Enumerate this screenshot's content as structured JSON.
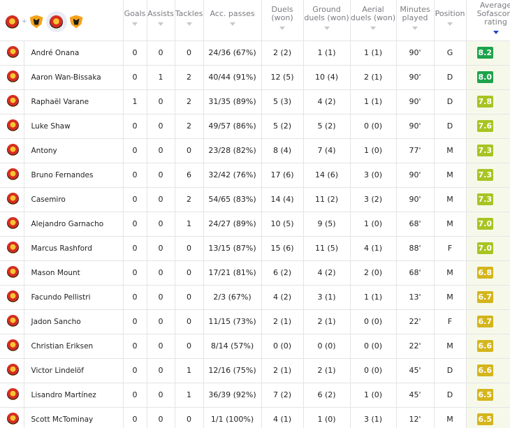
{
  "header": {
    "team_selector": {
      "left_team_icon": "man-utd-crest",
      "separator": "+",
      "right_team_icon": "wolves-crest"
    },
    "columns": [
      {
        "key": "goals",
        "label": "Goals"
      },
      {
        "key": "assists",
        "label": "Assists"
      },
      {
        "key": "tackles",
        "label": "Tackles"
      },
      {
        "key": "acc_passes",
        "label": "Acc. passes"
      },
      {
        "key": "duels",
        "label": "Duels\n(won)"
      },
      {
        "key": "ground_duels",
        "label": "Ground\nduels (won)"
      },
      {
        "key": "aerial_duels",
        "label": "Aerial\nduels (won)"
      },
      {
        "key": "minutes",
        "label": "Minutes\nplayed"
      },
      {
        "key": "position",
        "label": "Position"
      },
      {
        "key": "rating",
        "label": "Average\nSofascore\nrating"
      }
    ],
    "sorted_column": "rating"
  },
  "rating_colors": {
    "green": "#1ea34b",
    "lime": "#a8c422",
    "yellow": "#d4b51c"
  },
  "players": [
    {
      "team_icon": "man-utd-crest",
      "name": "André Onana",
      "goals": "0",
      "assists": "0",
      "tackles": "0",
      "acc_passes": "24/36 (67%)",
      "duels": "2 (2)",
      "ground_duels": "1 (1)",
      "aerial_duels": "1 (1)",
      "minutes": "90'",
      "position": "G",
      "rating": "8.2",
      "rating_color": "green"
    },
    {
      "team_icon": "man-utd-crest",
      "name": "Aaron Wan-Bissaka",
      "goals": "0",
      "assists": "1",
      "tackles": "2",
      "acc_passes": "40/44 (91%)",
      "duels": "12 (5)",
      "ground_duels": "10 (4)",
      "aerial_duels": "2 (1)",
      "minutes": "90'",
      "position": "D",
      "rating": "8.0",
      "rating_color": "green"
    },
    {
      "team_icon": "man-utd-crest",
      "name": "Raphaël Varane",
      "goals": "1",
      "assists": "0",
      "tackles": "2",
      "acc_passes": "31/35 (89%)",
      "duels": "5 (3)",
      "ground_duels": "4 (2)",
      "aerial_duels": "1 (1)",
      "minutes": "90'",
      "position": "D",
      "rating": "7.8",
      "rating_color": "lime"
    },
    {
      "team_icon": "man-utd-crest",
      "name": "Luke Shaw",
      "goals": "0",
      "assists": "0",
      "tackles": "2",
      "acc_passes": "49/57 (86%)",
      "duels": "5 (2)",
      "ground_duels": "5 (2)",
      "aerial_duels": "0 (0)",
      "minutes": "90'",
      "position": "D",
      "rating": "7.6",
      "rating_color": "lime"
    },
    {
      "team_icon": "man-utd-crest",
      "name": "Antony",
      "goals": "0",
      "assists": "0",
      "tackles": "0",
      "acc_passes": "23/28 (82%)",
      "duels": "8 (4)",
      "ground_duels": "7 (4)",
      "aerial_duels": "1 (0)",
      "minutes": "77'",
      "position": "M",
      "rating": "7.3",
      "rating_color": "lime"
    },
    {
      "team_icon": "man-utd-crest",
      "name": "Bruno Fernandes",
      "goals": "0",
      "assists": "0",
      "tackles": "6",
      "acc_passes": "32/42 (76%)",
      "duels": "17 (6)",
      "ground_duels": "14 (6)",
      "aerial_duels": "3 (0)",
      "minutes": "90'",
      "position": "M",
      "rating": "7.3",
      "rating_color": "lime"
    },
    {
      "team_icon": "man-utd-crest",
      "name": "Casemiro",
      "goals": "0",
      "assists": "0",
      "tackles": "2",
      "acc_passes": "54/65 (83%)",
      "duels": "14 (4)",
      "ground_duels": "11 (2)",
      "aerial_duels": "3 (2)",
      "minutes": "90'",
      "position": "M",
      "rating": "7.3",
      "rating_color": "lime"
    },
    {
      "team_icon": "man-utd-crest",
      "name": "Alejandro Garnacho",
      "goals": "0",
      "assists": "0",
      "tackles": "1",
      "acc_passes": "24/27 (89%)",
      "duels": "10 (5)",
      "ground_duels": "9 (5)",
      "aerial_duels": "1 (0)",
      "minutes": "68'",
      "position": "M",
      "rating": "7.0",
      "rating_color": "lime"
    },
    {
      "team_icon": "man-utd-crest",
      "name": "Marcus Rashford",
      "goals": "0",
      "assists": "0",
      "tackles": "0",
      "acc_passes": "13/15 (87%)",
      "duels": "15 (6)",
      "ground_duels": "11 (5)",
      "aerial_duels": "4 (1)",
      "minutes": "88'",
      "position": "F",
      "rating": "7.0",
      "rating_color": "lime"
    },
    {
      "team_icon": "man-utd-crest",
      "name": "Mason Mount",
      "goals": "0",
      "assists": "0",
      "tackles": "0",
      "acc_passes": "17/21 (81%)",
      "duels": "6 (2)",
      "ground_duels": "4 (2)",
      "aerial_duels": "2 (0)",
      "minutes": "68'",
      "position": "M",
      "rating": "6.8",
      "rating_color": "yellow"
    },
    {
      "team_icon": "man-utd-crest",
      "name": "Facundo Pellistri",
      "goals": "0",
      "assists": "0",
      "tackles": "0",
      "acc_passes": "2/3 (67%)",
      "duels": "4 (2)",
      "ground_duels": "3 (1)",
      "aerial_duels": "1 (1)",
      "minutes": "13'",
      "position": "M",
      "rating": "6.7",
      "rating_color": "yellow"
    },
    {
      "team_icon": "man-utd-crest",
      "name": "Jadon Sancho",
      "goals": "0",
      "assists": "0",
      "tackles": "0",
      "acc_passes": "11/15 (73%)",
      "duels": "2 (1)",
      "ground_duels": "2 (1)",
      "aerial_duels": "0 (0)",
      "minutes": "22'",
      "position": "F",
      "rating": "6.7",
      "rating_color": "yellow"
    },
    {
      "team_icon": "man-utd-crest",
      "name": "Christian Eriksen",
      "goals": "0",
      "assists": "0",
      "tackles": "0",
      "acc_passes": "8/14 (57%)",
      "duels": "0 (0)",
      "ground_duels": "0 (0)",
      "aerial_duels": "0 (0)",
      "minutes": "22'",
      "position": "M",
      "rating": "6.6",
      "rating_color": "yellow"
    },
    {
      "team_icon": "man-utd-crest",
      "name": "Victor Lindelöf",
      "goals": "0",
      "assists": "0",
      "tackles": "1",
      "acc_passes": "12/16 (75%)",
      "duels": "2 (1)",
      "ground_duels": "2 (1)",
      "aerial_duels": "0 (0)",
      "minutes": "45'",
      "position": "D",
      "rating": "6.6",
      "rating_color": "yellow"
    },
    {
      "team_icon": "man-utd-crest",
      "name": "Lisandro Martínez",
      "goals": "0",
      "assists": "0",
      "tackles": "1",
      "acc_passes": "36/39 (92%)",
      "duels": "7 (2)",
      "ground_duels": "6 (2)",
      "aerial_duels": "1 (0)",
      "minutes": "45'",
      "position": "D",
      "rating": "6.5",
      "rating_color": "yellow"
    },
    {
      "team_icon": "man-utd-crest",
      "name": "Scott McTominay",
      "goals": "0",
      "assists": "0",
      "tackles": "0",
      "acc_passes": "1/1 (100%)",
      "duels": "4 (1)",
      "ground_duels": "1 (0)",
      "aerial_duels": "3 (1)",
      "minutes": "12'",
      "position": "M",
      "rating": "6.5",
      "rating_color": "yellow"
    }
  ]
}
